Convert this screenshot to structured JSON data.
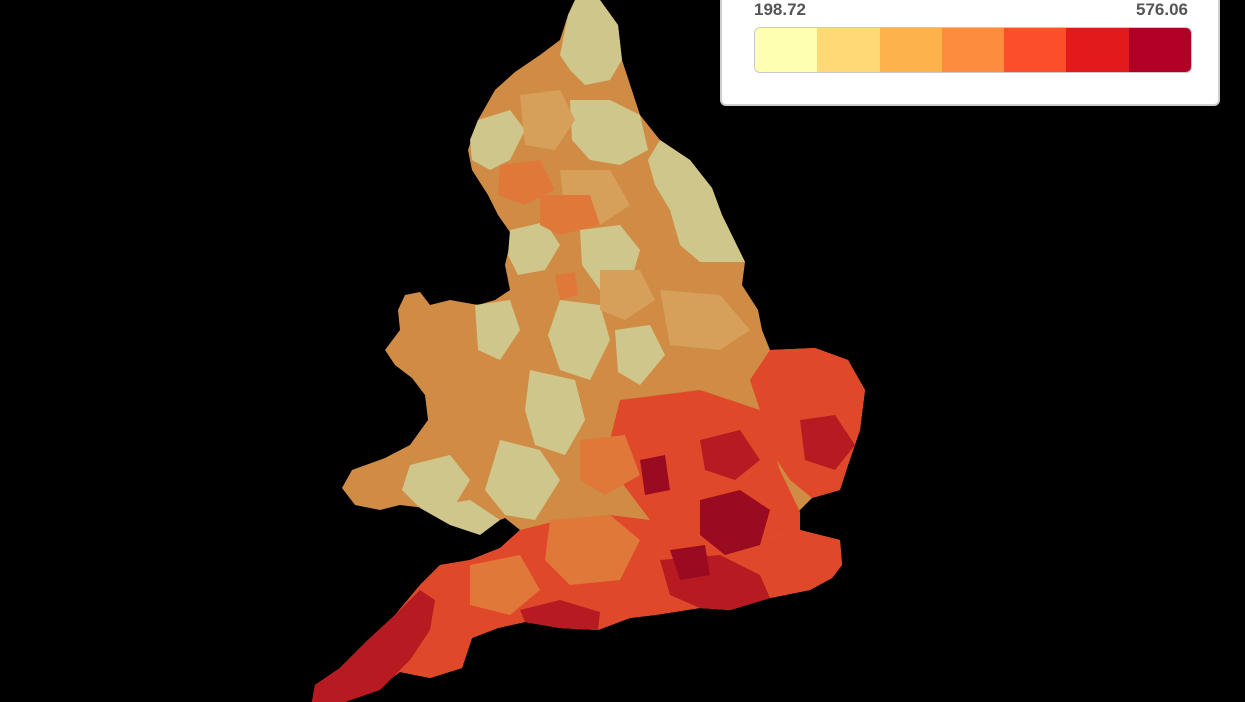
{
  "legend": {
    "min_label": "198.72",
    "max_label": "576.06",
    "colors": [
      "#ffffb2",
      "#fed976",
      "#feb24c",
      "#fd8d3c",
      "#fc4e2a",
      "#e31a1c",
      "#b10026"
    ]
  },
  "map": {
    "region_colors": {
      "north_base": "#d08c45",
      "pale": "#cfc68c",
      "sand": "#d6a05a",
      "wales": "#d48a48",
      "midlands_orange": "#e0783a",
      "south_red": "#e0482a",
      "deep_red": "#b81a22",
      "darkest": "#9a0a20"
    }
  }
}
